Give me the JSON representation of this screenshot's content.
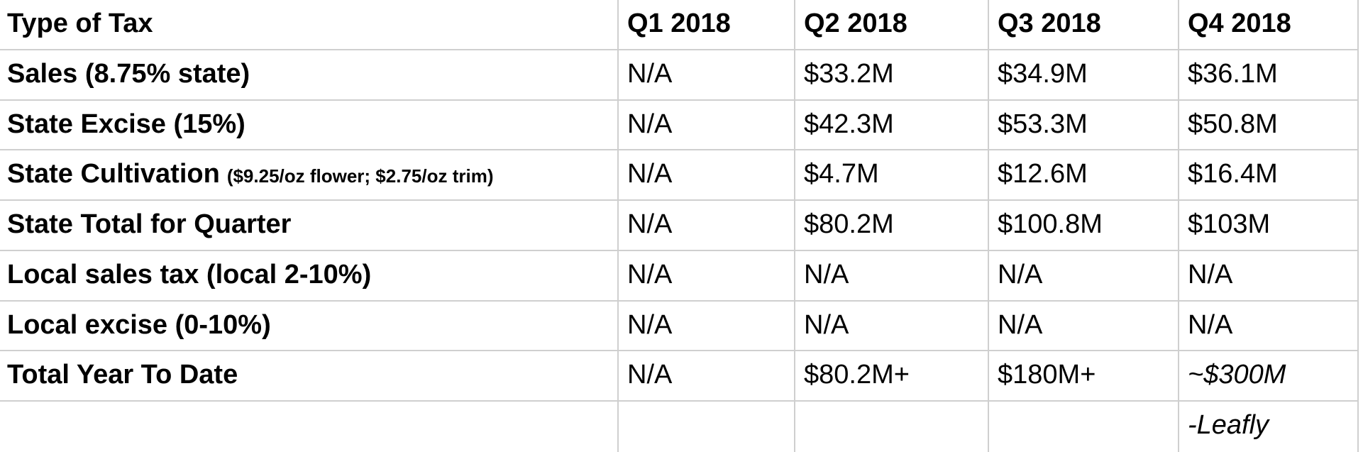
{
  "chart_data": {
    "type": "table",
    "title": "Quarterly tax revenue table, 2018",
    "columns": [
      "Type of Tax",
      "Q1 2018",
      "Q2 2018",
      "Q3 2018",
      "Q4 2018"
    ],
    "rows": [
      {
        "label": "Sales (8.75% state)",
        "sublabel": "",
        "values": [
          "N/A",
          "$33.2M",
          "$34.9M",
          "$36.1M"
        ]
      },
      {
        "label": "State Excise (15%)",
        "sublabel": "",
        "values": [
          "N/A",
          "$42.3M",
          "$53.3M",
          "$50.8M"
        ]
      },
      {
        "label": "State Cultivation",
        "sublabel": "($9.25/oz flower; $2.75/oz trim)",
        "values": [
          "N/A",
          "$4.7M",
          "$12.6M",
          "$16.4M"
        ]
      },
      {
        "label": "State Total for Quarter",
        "sublabel": "",
        "values": [
          "N/A",
          "$80.2M",
          "$100.8M",
          "$103M"
        ]
      },
      {
        "label": "Local sales tax (local 2-10%)",
        "sublabel": "",
        "values": [
          "N/A",
          "N/A",
          "N/A",
          "N/A"
        ]
      },
      {
        "label": "Local excise (0-10%)",
        "sublabel": "",
        "values": [
          "N/A",
          "N/A",
          "N/A",
          "N/A"
        ]
      },
      {
        "label": "Total Year To Date",
        "sublabel": "",
        "values": [
          "N/A",
          "$80.2M+",
          "$180M+",
          "~$300M"
        ]
      },
      {
        "label": "",
        "sublabel": "",
        "values": [
          "",
          "",
          "",
          "-Leafly"
        ]
      }
    ],
    "attribution": "-Leafly",
    "layout": {
      "grid": "on",
      "header_row_bold": true,
      "label_column_bold": true
    }
  },
  "colors": {
    "background": "#ffffff",
    "grid_line": "#cfcfcf",
    "text": "#000000"
  }
}
